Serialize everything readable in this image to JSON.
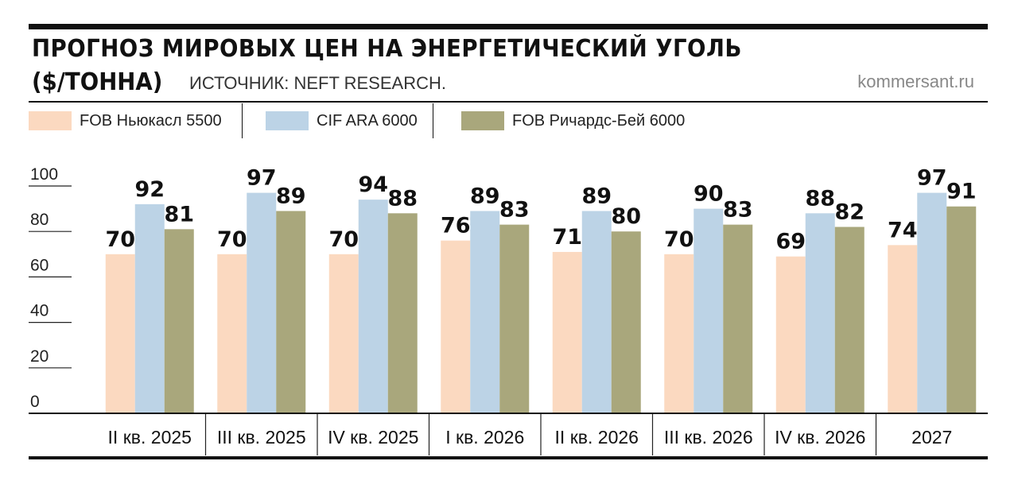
{
  "header": {
    "title": "ПРОГНОЗ МИРОВЫХ ЦЕН НА ЭНЕРГЕТИЧЕСКИЙ УГОЛЬ",
    "unit": "($/ТОННА)",
    "source": "ИСТОЧНИК: NEFT RESEARCH.",
    "site": "kommersant.ru"
  },
  "legend": {
    "items": [
      {
        "label": "FOB Ньюкасл 5500",
        "color": "#fbd9c0"
      },
      {
        "label": "CIF ARA 6000",
        "color": "#bcd3e6"
      },
      {
        "label": "FOB Ричардс-Бей 6000",
        "color": "#a9a77c"
      }
    ]
  },
  "chart_data": {
    "type": "bar",
    "title": "ПРОГНОЗ МИРОВЫХ ЦЕН НА ЭНЕРГЕТИЧЕСКИЙ УГОЛЬ ($/ТОННА)",
    "categories": [
      "II кв. 2025",
      "III кв. 2025",
      "IV кв. 2025",
      "I кв. 2026",
      "II кв. 2026",
      "III кв. 2026",
      "IV кв. 2026",
      "2027"
    ],
    "series": [
      {
        "name": "FOB Ньюкасл 5500",
        "color": "#fbd9c0",
        "values": [
          70,
          70,
          70,
          76,
          71,
          70,
          69,
          74
        ]
      },
      {
        "name": "CIF ARA 6000",
        "color": "#bcd3e6",
        "values": [
          92,
          97,
          94,
          89,
          89,
          90,
          88,
          97
        ]
      },
      {
        "name": "FOB Ричардс-Бей 6000",
        "color": "#a9a77c",
        "values": [
          81,
          89,
          88,
          83,
          80,
          83,
          82,
          91
        ]
      }
    ],
    "yticks": [
      0,
      20,
      40,
      60,
      80,
      100
    ],
    "ylim": [
      0,
      100
    ],
    "xlabel": "",
    "ylabel": "",
    "legend_position": "top"
  }
}
